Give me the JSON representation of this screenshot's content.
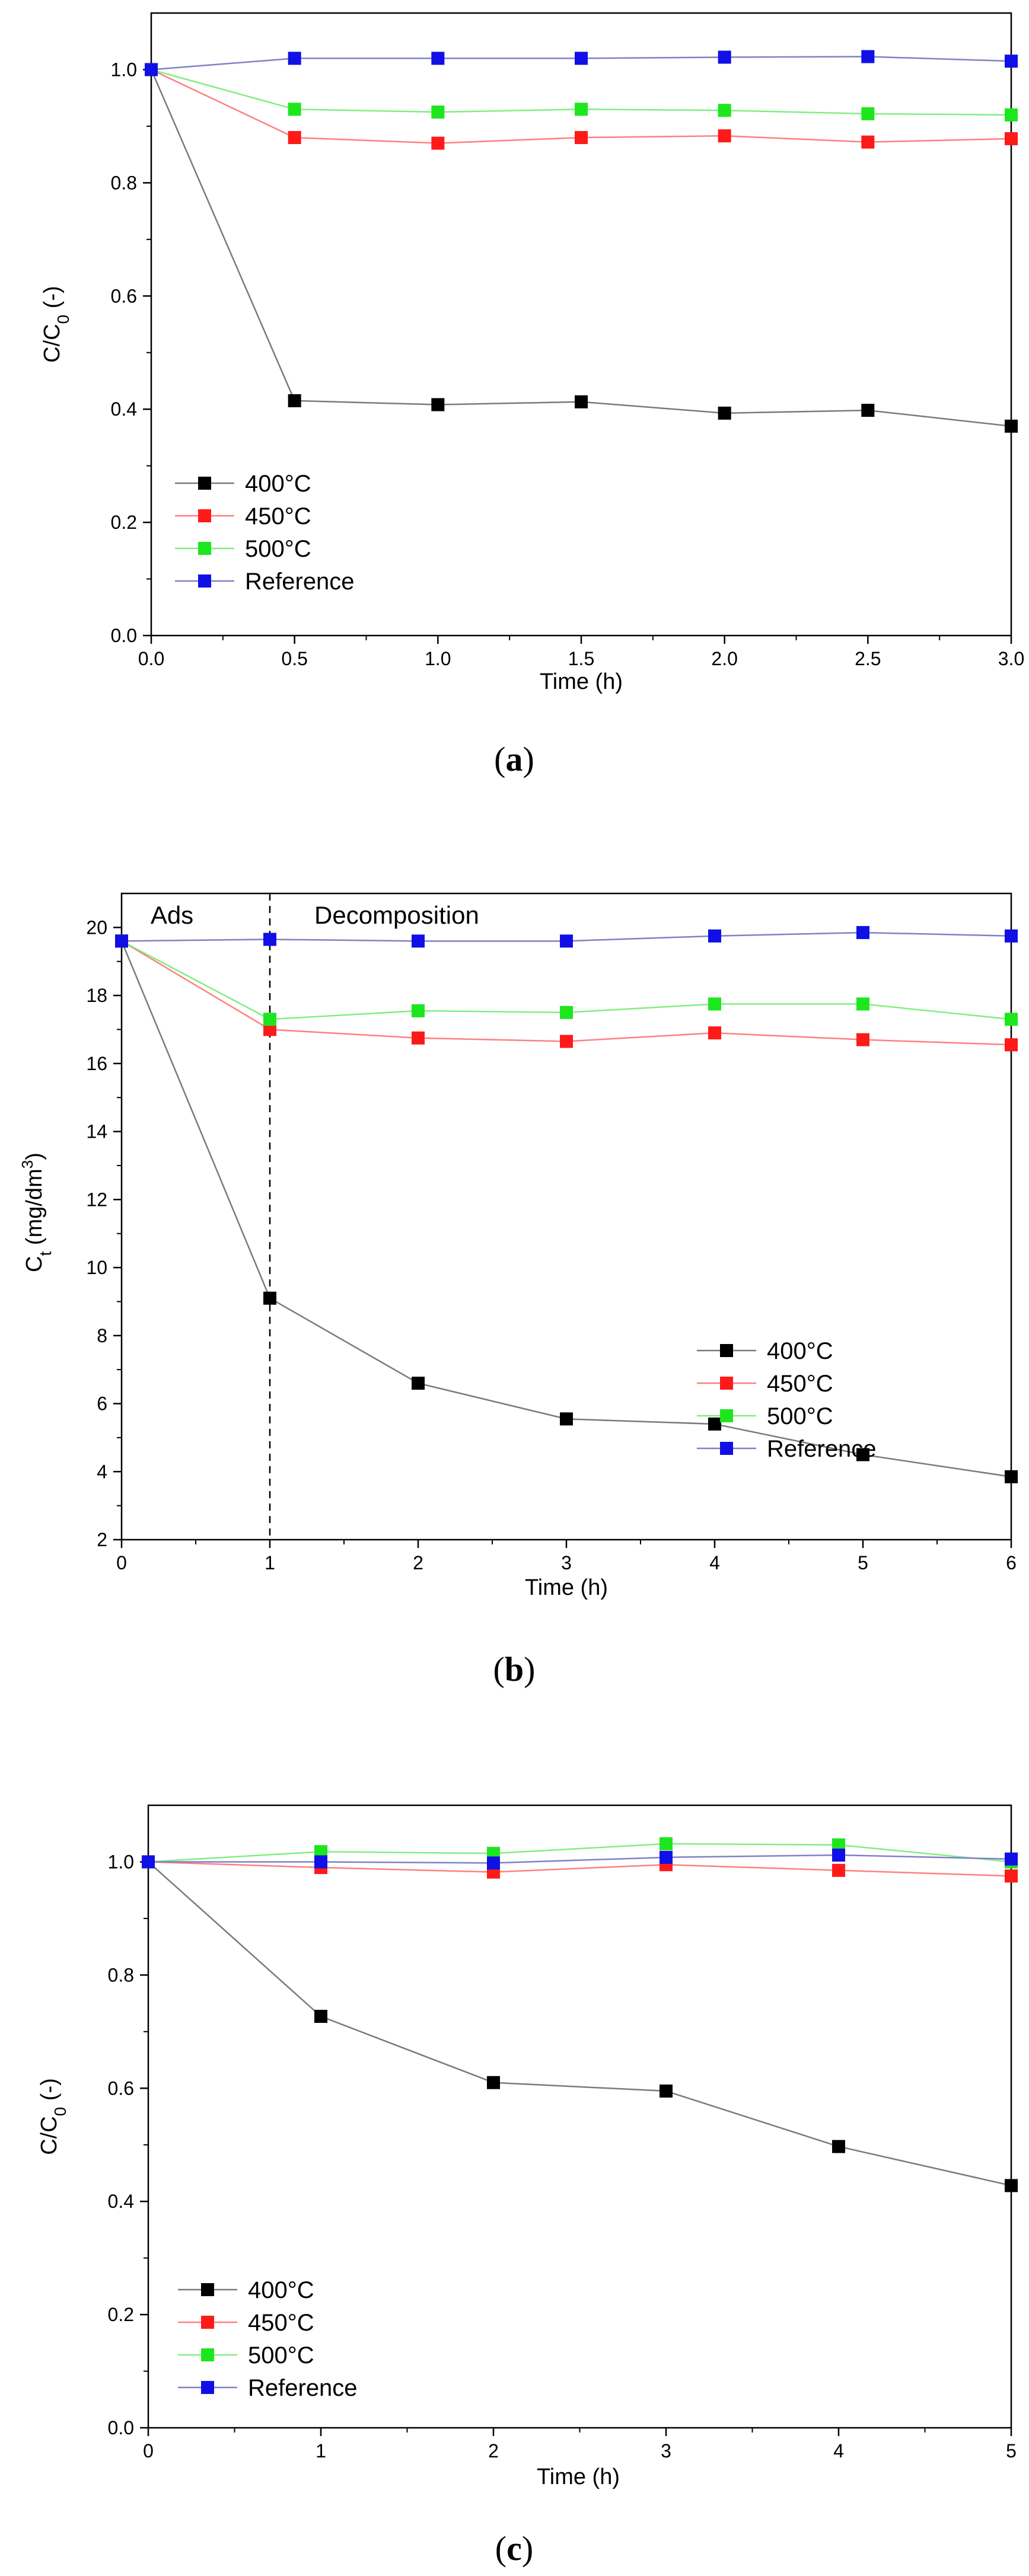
{
  "colors": {
    "s400": "#000000",
    "s450": "#ff1a1a",
    "s500": "#1ee61e",
    "sref": "#1010e6",
    "line400": "#7a7a7a",
    "line450": "#ff8080",
    "line500": "#80ee80",
    "lineref": "#8080c8"
  },
  "chart_data": [
    {
      "type": "line",
      "panel": "a",
      "xlabel": "Time (h)",
      "ylabel": "C/C0 (-)",
      "xlim": [
        0,
        3
      ],
      "ylim": [
        0,
        1.1
      ],
      "xticks": [
        0,
        0.5,
        1,
        1.5,
        2,
        2.5,
        3
      ],
      "xtick_labels": [
        "0.0",
        "0.5",
        "1.0",
        "1.5",
        "2.0",
        "2.5",
        "3.0"
      ],
      "yticks": [
        0,
        0.2,
        0.4,
        0.6,
        0.8,
        1.0
      ],
      "ytick_labels": [
        "0.0",
        "0.2",
        "0.4",
        "0.6",
        "0.8",
        "1.0"
      ],
      "legend_position": "bottom-left",
      "x": [
        0,
        0.5,
        1,
        1.5,
        2,
        2.5,
        3
      ],
      "series": [
        {
          "name": "400°C",
          "key": "400",
          "values": [
            1.0,
            0.415,
            0.408,
            0.413,
            0.393,
            0.398,
            0.37
          ]
        },
        {
          "name": "450°C",
          "key": "450",
          "values": [
            1.0,
            0.88,
            0.87,
            0.88,
            0.883,
            0.872,
            0.878
          ]
        },
        {
          "name": "500°C",
          "key": "500",
          "values": [
            1.0,
            0.93,
            0.925,
            0.93,
            0.928,
            0.922,
            0.92
          ]
        },
        {
          "name": "Reference",
          "key": "ref",
          "values": [
            1.0,
            1.02,
            1.02,
            1.02,
            1.022,
            1.023,
            1.015
          ]
        }
      ]
    },
    {
      "type": "line",
      "panel": "b",
      "xlabel": "Time (h)",
      "ylabel": "Ct (mg/dm3)",
      "xlim": [
        0,
        6
      ],
      "ylim": [
        2,
        21
      ],
      "xticks": [
        0,
        1,
        2,
        3,
        4,
        5,
        6
      ],
      "xtick_labels": [
        "0",
        "1",
        "2",
        "3",
        "4",
        "5",
        "6"
      ],
      "yticks": [
        2,
        4,
        6,
        8,
        10,
        12,
        14,
        16,
        18,
        20
      ],
      "ytick_labels": [
        "2",
        "4",
        "6",
        "8",
        "10",
        "12",
        "14",
        "16",
        "18",
        "20"
      ],
      "legend_position": "middle-right",
      "annotations": [
        "Ads",
        "Decomposition"
      ],
      "divider_x": 1,
      "x": [
        0,
        1,
        2,
        3,
        4,
        5,
        6
      ],
      "series": [
        {
          "name": "400°C",
          "key": "400",
          "values": [
            19.6,
            9.1,
            6.6,
            5.55,
            5.4,
            4.5,
            3.85
          ]
        },
        {
          "name": "450°C",
          "key": "450",
          "values": [
            19.6,
            17.0,
            16.75,
            16.65,
            16.9,
            16.7,
            16.55
          ]
        },
        {
          "name": "500°C",
          "key": "500",
          "values": [
            19.6,
            17.3,
            17.55,
            17.5,
            17.75,
            17.75,
            17.3
          ]
        },
        {
          "name": "Reference",
          "key": "ref",
          "values": [
            19.6,
            19.65,
            19.6,
            19.6,
            19.75,
            19.85,
            19.75
          ]
        }
      ]
    },
    {
      "type": "line",
      "panel": "c",
      "xlabel": "Time (h)",
      "ylabel": "C/C0 (-)",
      "xlim": [
        0,
        5
      ],
      "ylim": [
        0,
        1.1
      ],
      "xticks": [
        0,
        1,
        2,
        3,
        4,
        5
      ],
      "xtick_labels": [
        "0",
        "1",
        "2",
        "3",
        "4",
        "5"
      ],
      "yticks": [
        0,
        0.2,
        0.4,
        0.6,
        0.8,
        1.0
      ],
      "ytick_labels": [
        "0.0",
        "0.2",
        "0.4",
        "0.6",
        "0.8",
        "1.0"
      ],
      "legend_position": "bottom-left",
      "x": [
        0,
        1,
        2,
        3,
        4,
        5
      ],
      "series": [
        {
          "name": "400°C",
          "key": "400",
          "values": [
            1.0,
            0.727,
            0.61,
            0.595,
            0.497,
            0.428
          ]
        },
        {
          "name": "450°C",
          "key": "450",
          "values": [
            1.0,
            0.99,
            0.982,
            0.995,
            0.985,
            0.975
          ]
        },
        {
          "name": "500°C",
          "key": "500",
          "values": [
            1.0,
            1.018,
            1.015,
            1.032,
            1.03,
            1.0
          ]
        },
        {
          "name": "Reference",
          "key": "ref",
          "values": [
            1.0,
            1.0,
            0.998,
            1.008,
            1.012,
            1.005
          ]
        }
      ]
    }
  ],
  "captions": {
    "a": {
      "open": "(",
      "letter": "a",
      "close": ")"
    },
    "b": {
      "open": "(",
      "letter": "b",
      "close": ")"
    },
    "c": {
      "open": "(",
      "letter": "c",
      "close": ")"
    }
  }
}
